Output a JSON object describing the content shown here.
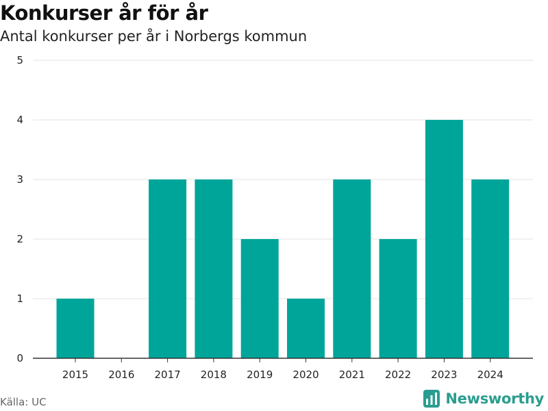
{
  "header": {
    "title": "Konkurser år för år",
    "subtitle": "Antal konkurser per år i Norbergs kommun"
  },
  "footer": {
    "source": "Källa: UC",
    "brand": "Newsworthy",
    "brand_icon": "newsworthy-logo-icon"
  },
  "colors": {
    "bar": "#00a59a",
    "grid": "#e3e3e3",
    "axis": "#333333",
    "brand": "#2a9d8f"
  },
  "chart_data": {
    "type": "bar",
    "title": "Konkurser år för år",
    "subtitle": "Antal konkurser per år i Norbergs kommun",
    "xlabel": "",
    "ylabel": "",
    "categories": [
      "2015",
      "2016",
      "2017",
      "2018",
      "2019",
      "2020",
      "2021",
      "2022",
      "2023",
      "2024"
    ],
    "values": [
      1,
      0,
      3,
      3,
      2,
      1,
      3,
      2,
      4,
      3
    ],
    "ylim": [
      0,
      5
    ],
    "yticks": [
      "0",
      "1",
      "2",
      "3",
      "4",
      "5"
    ],
    "grid": true,
    "legend": "none"
  }
}
